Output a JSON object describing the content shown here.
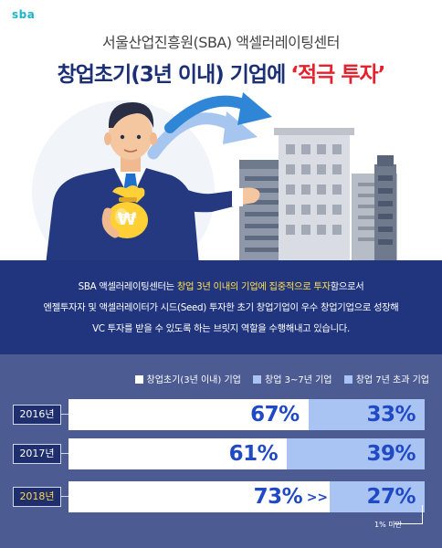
{
  "header": {
    "logo": "sba",
    "subtitle": "서울산업진흥원(SBA) 액셀러레이팅센터",
    "title_main": "창업초기(3년 이내) 기업에",
    "title_highlight": "‘적극 투자’"
  },
  "illustration": {
    "money_bag_symbol": "₩",
    "icons": [
      "businessman",
      "money-bag",
      "arrow",
      "office-buildings"
    ]
  },
  "description": {
    "line1_a": "SBA 액셀러레이팅센터는 ",
    "line1_b": "창업 3년 이내의 기업에 집중적으로 투자",
    "line1_c": "함으로서",
    "line2": "엔젤투자자 및 액셀러레이터가 시드(Seed) 투자한 초기 창업기업이 우수 창업기업으로 성장해",
    "line3": "VC 투자를 받을 수 있도록 하는 브릿지 역할을 수행해내고 있습니다."
  },
  "chart_data": {
    "type": "bar",
    "stacked": true,
    "orientation": "horizontal",
    "categories": [
      "2016년",
      "2017년",
      "2018년"
    ],
    "series": [
      {
        "name": "창업초기(3년 이내) 기업",
        "values": [
          67,
          61,
          73
        ],
        "labels": [
          "67%",
          "61%",
          "73%"
        ],
        "color": "#ffffff"
      },
      {
        "name": "창업 3~7년 기업",
        "values": [
          32.5,
          38.5,
          26.5
        ],
        "labels": [
          "33%",
          "39%",
          "27%"
        ],
        "color": "#a9c3f3"
      },
      {
        "name": "창업 7년 초과 기업",
        "values": [
          0.5,
          0.5,
          0.5
        ],
        "labels": [
          "",
          "",
          ""
        ],
        "color": "#4c5b92"
      }
    ],
    "legend_position": "top-right",
    "highlight_category": "2018년",
    "arrow_text": ">>",
    "annotation": "1% 미만",
    "xlim": [
      0,
      100
    ]
  },
  "colors": {
    "navy": "#1b2f75",
    "red": "#e6202c",
    "yellow": "#ffe04c",
    "value_blue": "#2049c5"
  }
}
